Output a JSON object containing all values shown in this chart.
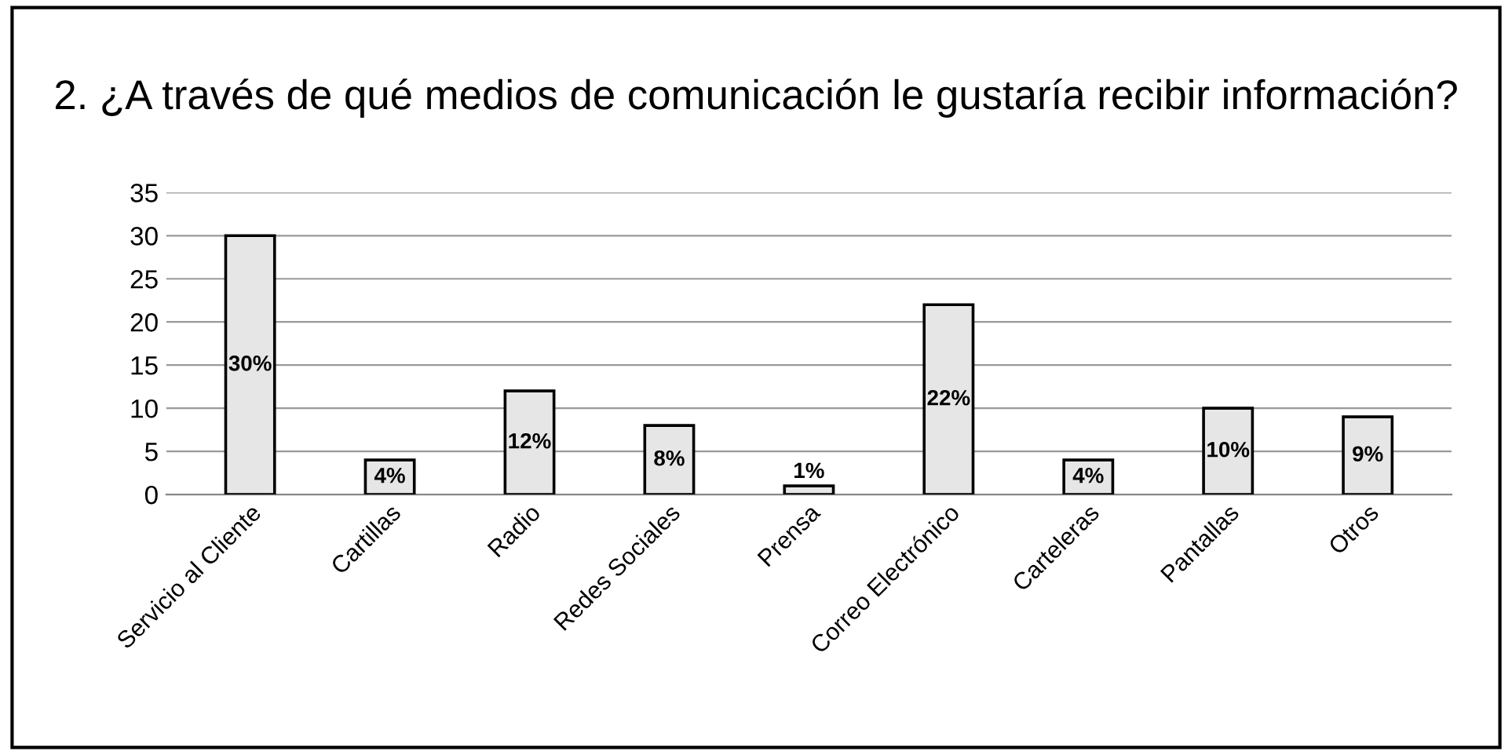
{
  "chart_data": {
    "type": "bar",
    "title": "2. ¿A través de qué medios de comunicación le gustaría recibir información?",
    "categories": [
      "Servicio al Cliente",
      "Cartillas",
      "Radio",
      "Redes Sociales",
      "Prensa",
      "Correo Electrónico",
      "Carteleras",
      "Pantallas",
      "Otros"
    ],
    "values": [
      30,
      4,
      12,
      8,
      1,
      22,
      4,
      10,
      9
    ],
    "value_labels": [
      "30%",
      "4%",
      "12%",
      "8%",
      "1%",
      "22%",
      "4%",
      "10%",
      "9%"
    ],
    "color": "#e6e6e6",
    "ylim": [
      0,
      35
    ],
    "yticks": [
      0,
      5,
      10,
      15,
      20,
      25,
      30,
      35
    ],
    "grid": "y",
    "legend": false
  }
}
